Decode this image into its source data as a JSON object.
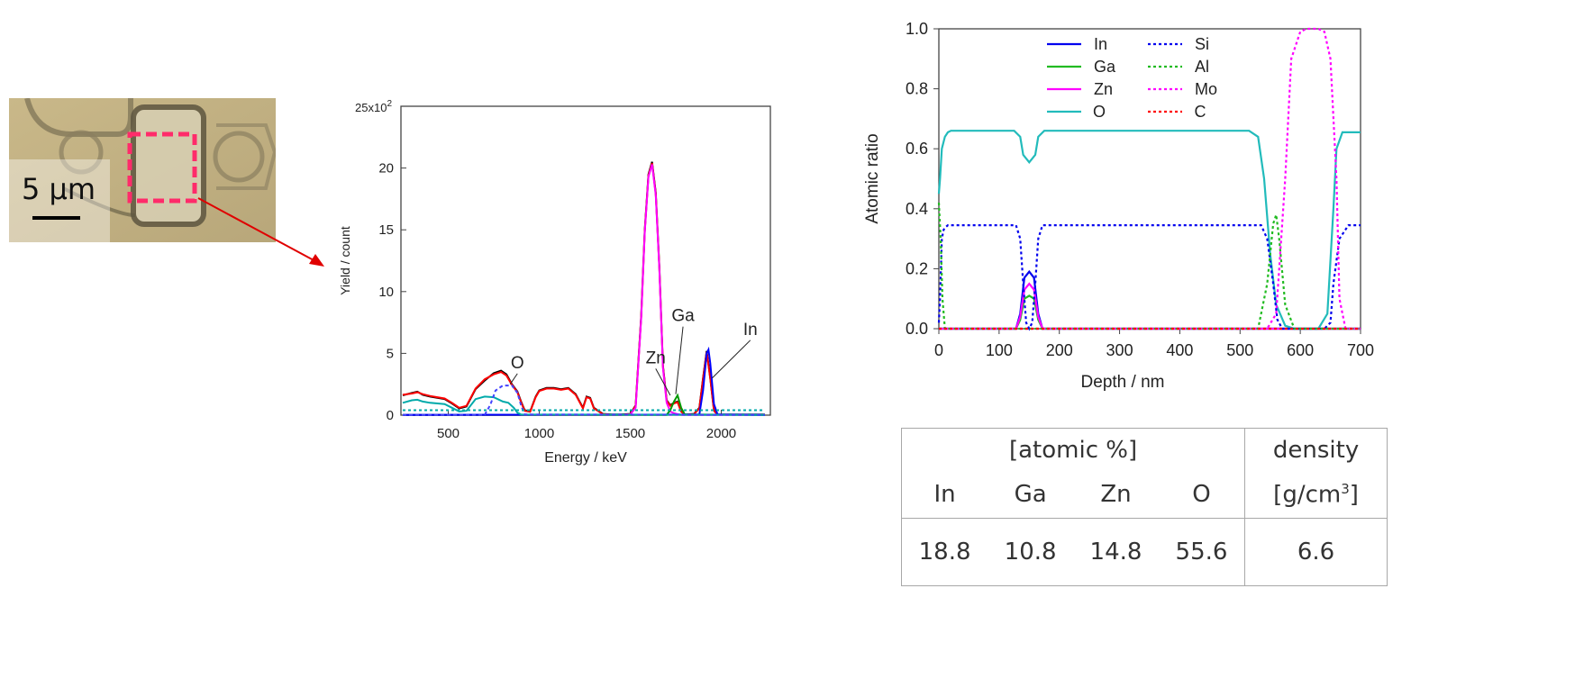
{
  "micrograph": {
    "scale_label": "5 µm"
  },
  "chart_data": [
    {
      "type": "line",
      "xlabel": "Energy / keV",
      "ylabel": "Yield / count",
      "ytop_label": "25x10",
      "ytop_exp": "2",
      "xlim": [
        240,
        2270
      ],
      "ylim": [
        0,
        2500
      ],
      "xticks": [
        "500",
        "1000",
        "1500",
        "2000"
      ],
      "xtick_values": [
        500,
        1000,
        1500,
        2000
      ],
      "yticks": [
        "0",
        "5",
        "10",
        "15",
        "20"
      ],
      "ytick_values": [
        0,
        500,
        1000,
        1500,
        2000
      ],
      "annotations": [
        "O",
        "Zn",
        "Ga",
        "In"
      ],
      "series": [
        {
          "color": "#000000",
          "dash": "",
          "x": [
            250,
            300,
            330,
            360,
            400,
            440,
            480,
            520,
            560,
            600,
            650,
            700,
            750,
            790,
            820,
            850,
            880,
            900,
            920,
            950,
            980,
            1000,
            1040,
            1080,
            1120,
            1160,
            1200,
            1240,
            1260,
            1280,
            1300,
            1350,
            1400,
            1450,
            1500,
            1530,
            1560,
            1580,
            1600,
            1620,
            1640,
            1660,
            1680,
            1700,
            1720,
            1740,
            1760,
            1780,
            1800,
            1850,
            1880,
            1900,
            1920,
            1940,
            1960,
            1980,
            2000,
            2050,
            2100,
            2200,
            2240
          ],
          "y": [
            160,
            180,
            190,
            165,
            150,
            140,
            130,
            95,
            55,
            70,
            210,
            280,
            340,
            360,
            330,
            250,
            190,
            110,
            40,
            30,
            150,
            200,
            220,
            220,
            210,
            220,
            170,
            60,
            150,
            140,
            60,
            10,
            5,
            5,
            10,
            80,
            800,
            1500,
            1950,
            2050,
            1800,
            1200,
            400,
            120,
            80,
            100,
            110,
            30,
            5,
            10,
            60,
            300,
            520,
            300,
            40,
            5,
            5,
            5,
            5,
            5,
            5
          ]
        },
        {
          "color": "#ff0000",
          "dash": "",
          "x": [
            250,
            300,
            330,
            360,
            400,
            440,
            480,
            520,
            560,
            600,
            650,
            700,
            750,
            790,
            820,
            850,
            880,
            900,
            920,
            950,
            980,
            1000,
            1040,
            1080,
            1120,
            1160,
            1200,
            1240,
            1260,
            1280,
            1300,
            1350,
            1400,
            1450,
            1500,
            1530,
            1560,
            1580,
            1600,
            1620,
            1640,
            1660,
            1680,
            1700,
            1720,
            1740,
            1760,
            1780,
            1800,
            1850,
            1880,
            1900,
            1920,
            1940,
            1960,
            1980,
            2000,
            2050,
            2100,
            2200,
            2240
          ],
          "y": [
            165,
            175,
            185,
            170,
            155,
            145,
            135,
            100,
            60,
            75,
            215,
            290,
            330,
            350,
            320,
            245,
            185,
            105,
            35,
            28,
            145,
            195,
            215,
            215,
            205,
            215,
            165,
            55,
            145,
            135,
            55,
            8,
            4,
            4,
            8,
            75,
            790,
            1490,
            1940,
            2040,
            1790,
            1190,
            390,
            115,
            75,
            95,
            105,
            28,
            4,
            8,
            55,
            295,
            510,
            295,
            35,
            4,
            4,
            4,
            4,
            4,
            4
          ]
        },
        {
          "color": "#ff00ff",
          "dash": "",
          "x": [
            250,
            1450,
            1500,
            1530,
            1560,
            1580,
            1600,
            1620,
            1640,
            1660,
            1680,
            1700,
            1720,
            1740,
            1760,
            1780,
            1800,
            2240
          ],
          "y": [
            2,
            2,
            5,
            60,
            780,
            1480,
            1930,
            2030,
            1780,
            1180,
            380,
            100,
            30,
            15,
            8,
            3,
            2,
            2
          ]
        },
        {
          "color": "#009900",
          "dash": "",
          "x": [
            250,
            1700,
            1720,
            1740,
            1760,
            1780,
            1800,
            2240
          ],
          "y": [
            2,
            2,
            40,
            110,
            160,
            60,
            5,
            2
          ]
        },
        {
          "color": "#0000ff",
          "dash": "",
          "x": [
            250,
            1880,
            1900,
            1920,
            1930,
            1940,
            1960,
            1980,
            2240
          ],
          "y": [
            2,
            5,
            200,
            500,
            530,
            420,
            90,
            5,
            2
          ]
        },
        {
          "color": "#00aaaa",
          "dash": "",
          "x": [
            250,
            300,
            330,
            360,
            400,
            440,
            480,
            520,
            560,
            600,
            650,
            700,
            750,
            800,
            830,
            860,
            880,
            900,
            2240
          ],
          "y": [
            100,
            120,
            125,
            110,
            100,
            95,
            90,
            60,
            30,
            35,
            130,
            150,
            145,
            110,
            100,
            60,
            20,
            5,
            2
          ]
        },
        {
          "color": "#4444ff",
          "dash": "4,3",
          "x": [
            250,
            700,
            730,
            760,
            800,
            850,
            880,
            900,
            920,
            2240
          ],
          "y": [
            2,
            2,
            80,
            200,
            240,
            240,
            180,
            80,
            5,
            2
          ]
        },
        {
          "color": "#00aaaa",
          "dash": "3,3",
          "x": [
            250,
            2240
          ],
          "y": [
            40,
            40
          ]
        }
      ]
    },
    {
      "type": "line",
      "xlabel": "Depth / nm",
      "ylabel": "Atomic ratio",
      "xlim": [
        0,
        700
      ],
      "ylim": [
        0,
        1.0
      ],
      "xticks": [
        "0",
        "100",
        "200",
        "300",
        "400",
        "500",
        "600",
        "700"
      ],
      "xtick_values": [
        0,
        100,
        200,
        300,
        400,
        500,
        600,
        700
      ],
      "yticks": [
        "0.0",
        "0.2",
        "0.4",
        "0.6",
        "0.8",
        "1.0"
      ],
      "ytick_values": [
        0,
        0.2,
        0.4,
        0.6,
        0.8,
        1.0
      ],
      "legend": [
        "In",
        "Ga",
        "Zn",
        "O",
        "Si",
        "Al",
        "Mo",
        "C"
      ],
      "series": [
        {
          "name": "In",
          "color": "#0000ee",
          "dash": "",
          "x": [
            0,
            128,
            135,
            142,
            150,
            158,
            165,
            172,
            700
          ],
          "y": [
            0,
            0,
            0.05,
            0.17,
            0.19,
            0.17,
            0.05,
            0,
            0
          ]
        },
        {
          "name": "Ga",
          "color": "#22bb22",
          "dash": "",
          "x": [
            0,
            128,
            135,
            142,
            150,
            158,
            165,
            172,
            700
          ],
          "y": [
            0,
            0,
            0.03,
            0.1,
            0.11,
            0.1,
            0.03,
            0,
            0
          ]
        },
        {
          "name": "Zn",
          "color": "#ff00ff",
          "dash": "",
          "x": [
            0,
            128,
            135,
            142,
            150,
            158,
            165,
            172,
            700
          ],
          "y": [
            0,
            0,
            0.04,
            0.13,
            0.15,
            0.13,
            0.04,
            0,
            0
          ]
        },
        {
          "name": "O",
          "color": "#22bbbb",
          "dash": "",
          "x": [
            0,
            2,
            5,
            10,
            15,
            20,
            125,
            135,
            140,
            150,
            160,
            165,
            175,
            180,
            515,
            530,
            540,
            550,
            560,
            575,
            590,
            630,
            645,
            655,
            660,
            670,
            700
          ],
          "y": [
            0.45,
            0.5,
            0.6,
            0.64,
            0.655,
            0.66,
            0.66,
            0.64,
            0.58,
            0.555,
            0.58,
            0.64,
            0.66,
            0.66,
            0.66,
            0.64,
            0.5,
            0.25,
            0.08,
            0.01,
            0,
            0,
            0.05,
            0.4,
            0.6,
            0.655,
            0.655
          ]
        },
        {
          "name": "Si",
          "color": "#0000ee",
          "dash": "3,3",
          "x": [
            0,
            2,
            5,
            8,
            12,
            15,
            20,
            128,
            135,
            140,
            145,
            150,
            155,
            160,
            165,
            172,
            180,
            535,
            545,
            555,
            562,
            570,
            640,
            650,
            655,
            665,
            680,
            700
          ],
          "y": [
            0.02,
            0.1,
            0.3,
            0.33,
            0.34,
            0.345,
            0.345,
            0.345,
            0.3,
            0.15,
            0.02,
            0,
            0.02,
            0.15,
            0.3,
            0.345,
            0.345,
            0.345,
            0.3,
            0.15,
            0.03,
            0,
            0,
            0.02,
            0.15,
            0.3,
            0.345,
            0.345
          ]
        },
        {
          "name": "Al",
          "color": "#22bb22",
          "dash": "3,3",
          "x": [
            0,
            3,
            6,
            10,
            20,
            530,
            545,
            555,
            560,
            565,
            575,
            590,
            700
          ],
          "y": [
            0.42,
            0.3,
            0.1,
            0,
            0,
            0,
            0.15,
            0.35,
            0.38,
            0.3,
            0.08,
            0,
            0
          ]
        },
        {
          "name": "Mo",
          "color": "#ff00ff",
          "dash": "3,3",
          "x": [
            0,
            545,
            560,
            575,
            585,
            600,
            610,
            630,
            640,
            650,
            660,
            665,
            675,
            700
          ],
          "y": [
            0,
            0,
            0.05,
            0.5,
            0.9,
            0.99,
            1.0,
            1.0,
            0.99,
            0.9,
            0.5,
            0.1,
            0,
            0
          ]
        },
        {
          "name": "C",
          "color": "#ff0000",
          "dash": "3,3",
          "x": [
            0,
            700
          ],
          "y": [
            0,
            0
          ]
        }
      ]
    }
  ],
  "table": {
    "group_header": "[atomic %]",
    "density_header": "density",
    "density_unit_base": "[g/cm",
    "density_unit_exp": "3",
    "density_unit_close": "]",
    "columns": [
      "In",
      "Ga",
      "Zn",
      "O"
    ],
    "values": [
      "18.8",
      "10.8",
      "14.8",
      "55.6"
    ],
    "density": "6.6"
  }
}
